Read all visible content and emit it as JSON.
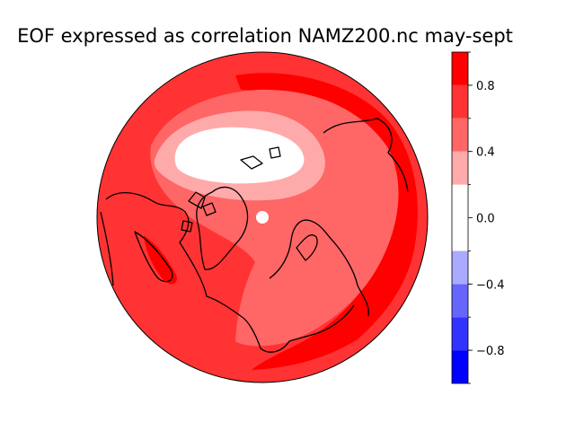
{
  "title": "EOF expressed as correlation NAMZ200.nc may-sept",
  "colorbar": {
    "levels": [
      -1.0,
      -0.8,
      -0.6,
      -0.4,
      -0.2,
      0.2,
      0.4,
      0.6,
      0.8,
      1.0
    ],
    "colors": [
      "#0000ff",
      "#3333ff",
      "#6666ff",
      "#aaaaff",
      "#ffffff",
      "#ffaaaa",
      "#ff6666",
      "#ff3333",
      "#ff0000"
    ],
    "ticks": [
      -0.8,
      -0.4,
      0.0,
      0.4,
      0.8
    ],
    "tick_labels": [
      "−0.8",
      "−0.4",
      "0.0",
      "0.4",
      "0.8"
    ]
  },
  "map": {
    "projection": "north-polar-orthographic",
    "field": "EOF correlation",
    "regions": [
      {
        "name": "outer-band",
        "level": 0.7,
        "color": "#ff3333"
      },
      {
        "name": "pacific-max",
        "level": 0.9,
        "color": "#ff0000"
      },
      {
        "name": "polar-mid",
        "level": 0.5,
        "color": "#ff6666"
      },
      {
        "name": "inner-ring",
        "level": 0.3,
        "color": "#ffaaaa"
      },
      {
        "name": "central-min",
        "level": 0.1,
        "color": "#ffffff"
      }
    ]
  }
}
